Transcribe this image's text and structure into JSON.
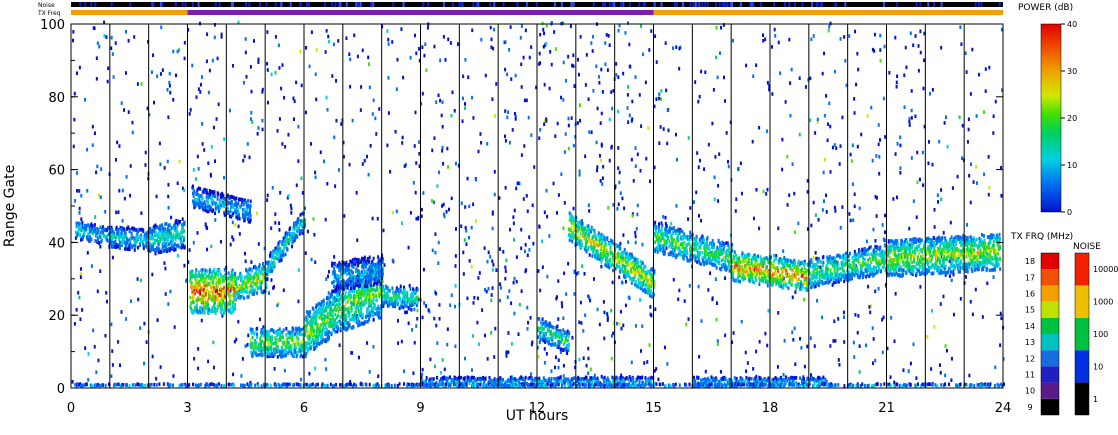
{
  "chart_data": {
    "type": "heatmap",
    "title": "",
    "xlabel": "UT hours",
    "ylabel": "Range Gate",
    "xlim": [
      0,
      24
    ],
    "ylim": [
      0,
      100
    ],
    "x_ticks": [
      0,
      3,
      6,
      9,
      12,
      15,
      18,
      21,
      24
    ],
    "y_ticks": [
      0,
      20,
      40,
      60,
      80,
      100
    ],
    "vertical_lines_at_hours": [
      1,
      2,
      3,
      4,
      5,
      6,
      7,
      8,
      9,
      10,
      11,
      12,
      13,
      14,
      15,
      16,
      17,
      18,
      19,
      20,
      21,
      22,
      23
    ],
    "top_strips": {
      "noise_label": "Noise",
      "txfreq_label": "TX Freq",
      "txfreq_segments": [
        {
          "start": 0,
          "end": 3,
          "color": "#f5a000"
        },
        {
          "start": 3,
          "end": 15,
          "color": "#7a1fb0"
        },
        {
          "start": 15,
          "end": 24,
          "color": "#f5a000"
        }
      ]
    },
    "echo_bands": [
      {
        "t0": 0.1,
        "t1": 1.0,
        "g0": 43,
        "g1": 41,
        "width": 2.5,
        "strength": 0.35
      },
      {
        "t0": 1.0,
        "t1": 2.0,
        "g0": 41,
        "g1": 40,
        "width": 3,
        "strength": 0.35
      },
      {
        "t0": 2.0,
        "t1": 2.9,
        "g0": 40,
        "g1": 42,
        "width": 4,
        "strength": 0.4
      },
      {
        "t0": 3.05,
        "t1": 4.2,
        "g0": 26,
        "g1": 26,
        "width": 6,
        "strength": 0.85
      },
      {
        "t0": 4.2,
        "t1": 5.0,
        "g0": 27,
        "g1": 30,
        "width": 4,
        "strength": 0.6
      },
      {
        "t0": 5.0,
        "t1": 6.0,
        "g0": 32,
        "g1": 46,
        "width": 3,
        "strength": 0.4
      },
      {
        "t0": 3.1,
        "t1": 4.6,
        "g0": 52,
        "g1": 48,
        "width": 3,
        "strength": 0.3
      },
      {
        "t0": 4.6,
        "t1": 6.0,
        "g0": 12,
        "g1": 12,
        "width": 4,
        "strength": 0.55
      },
      {
        "t0": 6.0,
        "t1": 7.0,
        "g0": 14,
        "g1": 22,
        "width": 6,
        "strength": 0.55
      },
      {
        "t0": 7.0,
        "t1": 8.0,
        "g0": 22,
        "g1": 26,
        "width": 7,
        "strength": 0.55
      },
      {
        "t0": 8.0,
        "t1": 8.9,
        "g0": 25,
        "g1": 24,
        "width": 3,
        "strength": 0.45
      },
      {
        "t0": 6.7,
        "t1": 8.0,
        "g0": 30,
        "g1": 32,
        "width": 4,
        "strength": 0.3
      },
      {
        "t0": 12.8,
        "t1": 15.0,
        "g0": 44,
        "g1": 28,
        "width": 4,
        "strength": 0.65
      },
      {
        "t0": 12.0,
        "t1": 12.8,
        "g0": 16,
        "g1": 12,
        "width": 3,
        "strength": 0.45
      },
      {
        "t0": 15.0,
        "t1": 17.0,
        "g0": 41,
        "g1": 35,
        "width": 4,
        "strength": 0.5
      },
      {
        "t0": 17.0,
        "t1": 19.0,
        "g0": 33,
        "g1": 30,
        "width": 4,
        "strength": 0.8
      },
      {
        "t0": 19.0,
        "t1": 21.0,
        "g0": 31,
        "g1": 35,
        "width": 4,
        "strength": 0.5
      },
      {
        "t0": 21.0,
        "t1": 23.9,
        "g0": 35,
        "g1": 37,
        "width": 5,
        "strength": 0.6
      },
      {
        "t0": 9.0,
        "t1": 15.0,
        "g0": 1,
        "g1": 1,
        "width": 1.5,
        "strength": 0.3
      },
      {
        "t0": 16.0,
        "t1": 19.5,
        "g0": 1,
        "g1": 1,
        "width": 1.5,
        "strength": 0.3
      },
      {
        "t0": 0.0,
        "t1": 24.0,
        "g0": 0,
        "g1": 0,
        "width": 0.6,
        "strength": 0.3
      }
    ],
    "colorbars": {
      "power": {
        "label": "POWER (dB)",
        "min": 0,
        "max": 40,
        "ticks": [
          "0",
          "10",
          "20",
          "30",
          "40"
        ]
      },
      "txfreq": {
        "label": "TX FRQ (MHz)",
        "min": 9,
        "max": 18,
        "ticks": [
          "9",
          "10",
          "11",
          "12",
          "13",
          "14",
          "15",
          "16",
          "17",
          "18"
        ],
        "colors": [
          "#000000",
          "#5a1a8a",
          "#2020c0",
          "#1a6ae0",
          "#00c0c0",
          "#00c040",
          "#c0e000",
          "#f0a000",
          "#f05000",
          "#e00000"
        ]
      },
      "noise": {
        "label": "NOISE",
        "ticks": [
          "1",
          "10",
          "100",
          "1000",
          "10000"
        ],
        "colors": [
          "#000000",
          "#0030e0",
          "#00c040",
          "#f0c000",
          "#f02000"
        ]
      }
    }
  }
}
